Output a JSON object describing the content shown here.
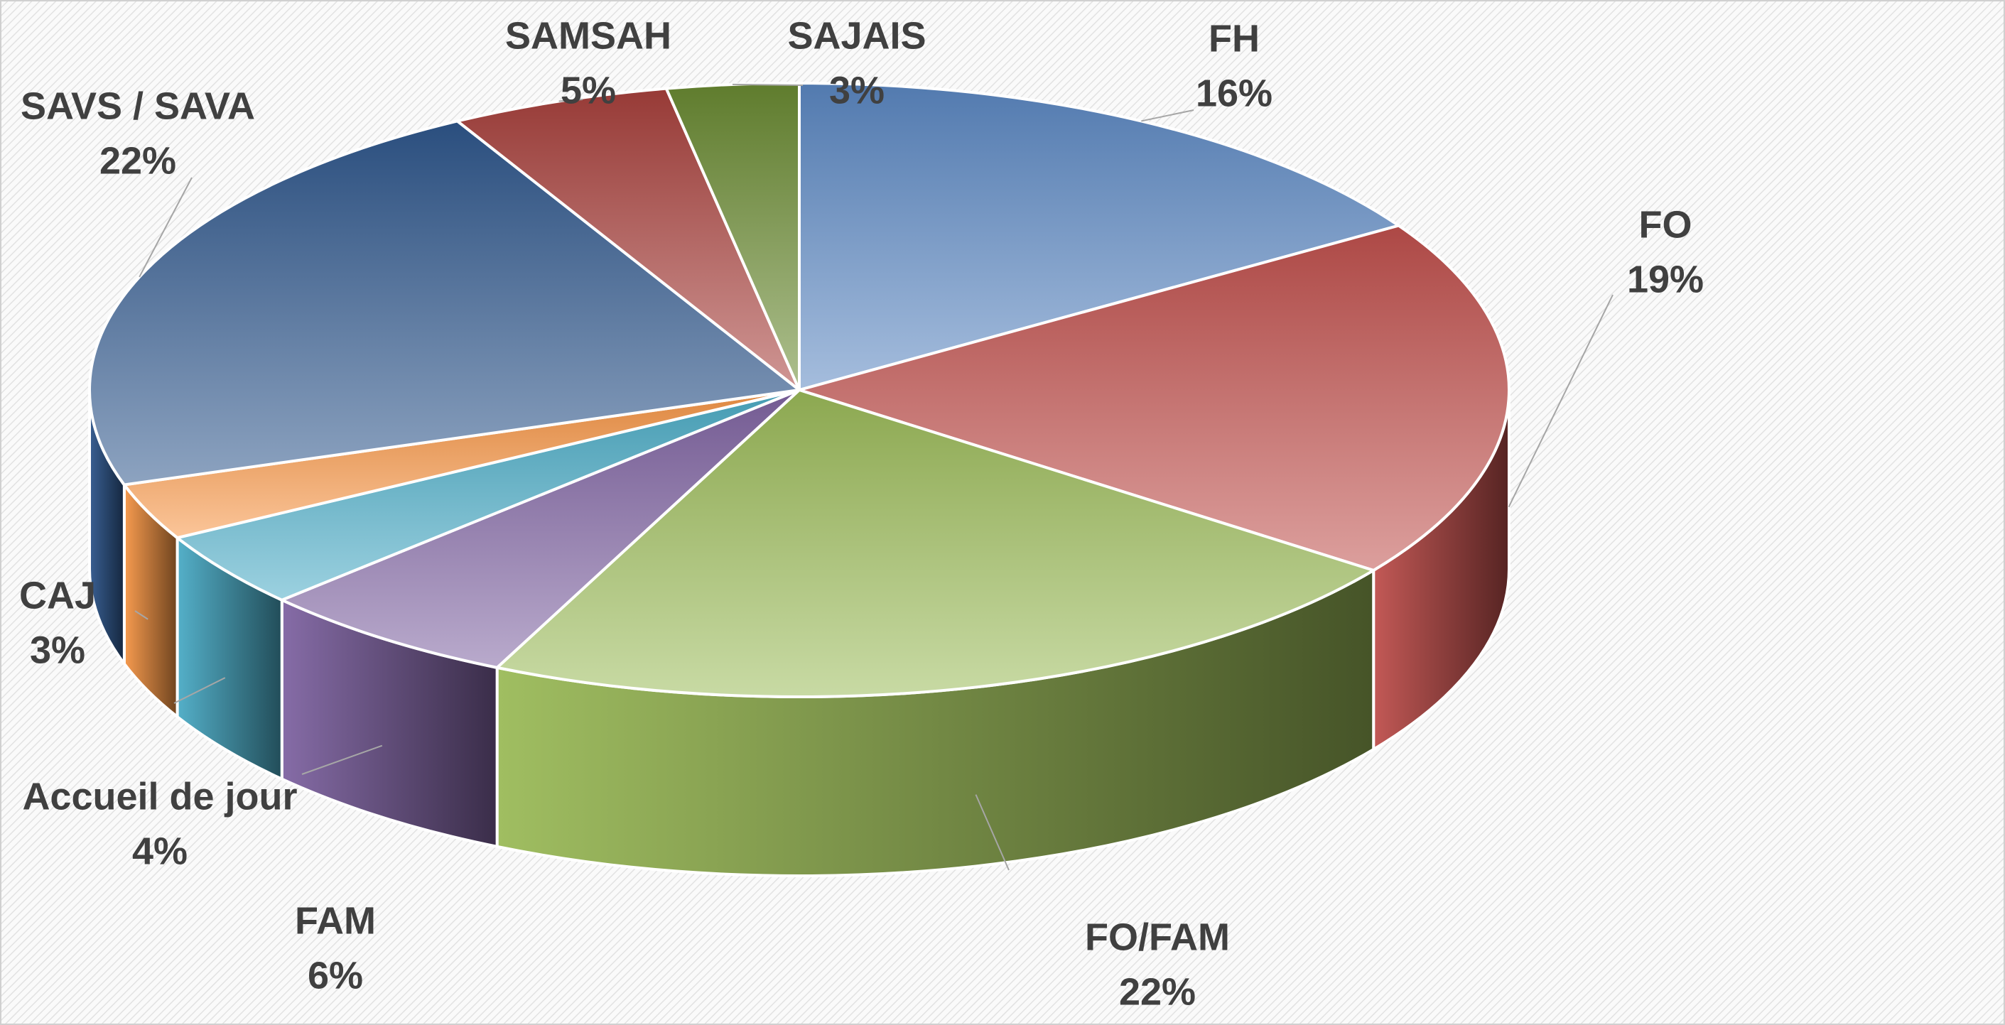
{
  "chart_data": {
    "type": "pie3d",
    "categories": [
      "FH",
      "FO",
      "FO/FAM",
      "FAM",
      "Accueil de jour",
      "CAJ",
      "SAVS / SAVA",
      "SAMSAH",
      "SAJAIS"
    ],
    "values": [
      16,
      19,
      22,
      6,
      4,
      3,
      22,
      5,
      3
    ],
    "value_labels": [
      "16%",
      "19%",
      "22%",
      "6%",
      "4%",
      "3%",
      "22%",
      "5%",
      "3%"
    ],
    "colors": [
      "#5b87c2",
      "#c0504d",
      "#9bbb59",
      "#8064a2",
      "#4bacc6",
      "#f79646",
      "#2f578c",
      "#a8403c",
      "#6a8a32"
    ]
  }
}
